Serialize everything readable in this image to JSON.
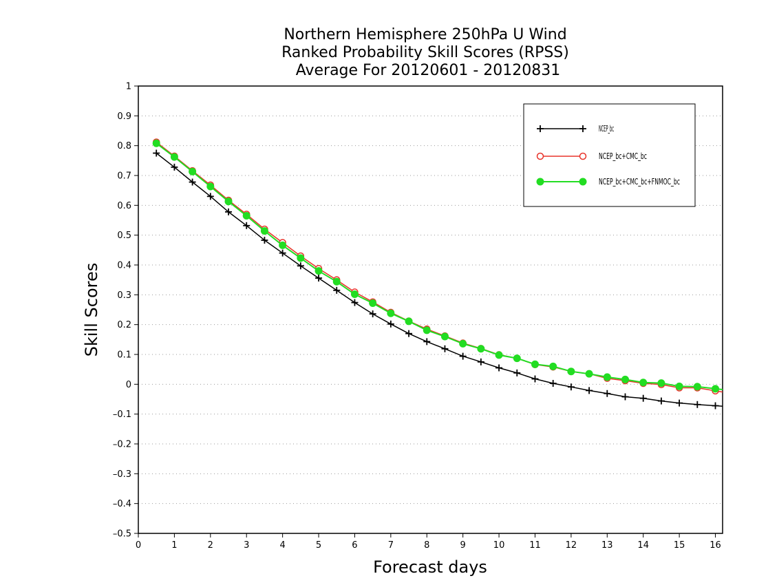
{
  "chart_data": {
    "type": "line",
    "title": [
      "Northern Hemisphere 250hPa U Wind",
      "Ranked Probability Skill Scores (RPSS)",
      "Average For 20120601 - 20120831"
    ],
    "xlabel": "Forecast days",
    "ylabel": "Skill Scores",
    "xlim": [
      0,
      16.2
    ],
    "ylim": [
      -0.5,
      1
    ],
    "xticks": [
      0,
      1,
      2,
      3,
      4,
      5,
      6,
      7,
      8,
      9,
      10,
      11,
      12,
      13,
      14,
      15,
      16
    ],
    "yticks": [
      -0.5,
      -0.4,
      -0.3,
      -0.2,
      -0.1,
      0,
      0.1,
      0.2,
      0.3,
      0.4,
      0.5,
      0.6,
      0.7,
      0.8,
      0.9,
      1
    ],
    "ytick_labels": [
      "–0.5",
      "–0.4",
      "–0.3",
      "–0.2",
      "–0.1",
      "0",
      "0.1",
      "0.2",
      "0.3",
      "0.4",
      "0.5",
      "0.6",
      "0.7",
      "0.8",
      "0.9",
      "1"
    ],
    "grid": "horizontal-dotted",
    "legend_position": "top-right",
    "x": [
      0.5,
      1,
      1.5,
      2,
      2.5,
      3,
      3.5,
      4,
      4.5,
      5,
      5.5,
      6,
      6.5,
      7,
      7.5,
      8,
      8.5,
      9,
      9.5,
      10,
      10.5,
      11,
      11.5,
      12,
      12.5,
      13,
      13.5,
      14,
      14.5,
      15,
      15.5,
      16
    ],
    "series": [
      {
        "name": "NCEP_bc",
        "color": "#000000",
        "marker": "plus",
        "values": [
          0.775,
          0.728,
          0.678,
          0.63,
          0.578,
          0.532,
          0.483,
          0.44,
          0.397,
          0.356,
          0.315,
          0.274,
          0.236,
          0.202,
          0.17,
          0.143,
          0.119,
          0.094,
          0.075,
          0.055,
          0.038,
          0.018,
          0.003,
          -0.009,
          -0.021,
          -0.031,
          -0.042,
          -0.047,
          -0.056,
          -0.063,
          -0.068,
          -0.072
        ]
      },
      {
        "name": "NCEP_bc+CMC_bc",
        "color": "#e8332a",
        "marker": "open-circle",
        "values": [
          0.812,
          0.765,
          0.716,
          0.668,
          0.617,
          0.57,
          0.52,
          0.475,
          0.43,
          0.388,
          0.35,
          0.309,
          0.276,
          0.241,
          0.212,
          0.185,
          0.162,
          0.138,
          0.12,
          0.099,
          0.087,
          0.066,
          0.058,
          0.043,
          0.035,
          0.02,
          0.012,
          0.003,
          -0.001,
          -0.012,
          -0.012,
          -0.022
        ]
      },
      {
        "name": "NCEP_bc+CMC_bc+FNMOC_bc",
        "color": "#22dd22",
        "marker": "filled-circle",
        "values": [
          0.808,
          0.762,
          0.713,
          0.663,
          0.613,
          0.565,
          0.514,
          0.466,
          0.423,
          0.38,
          0.344,
          0.302,
          0.272,
          0.238,
          0.211,
          0.181,
          0.16,
          0.136,
          0.119,
          0.098,
          0.087,
          0.067,
          0.06,
          0.043,
          0.035,
          0.024,
          0.016,
          0.006,
          0.004,
          -0.007,
          -0.008,
          -0.015
        ]
      }
    ]
  }
}
